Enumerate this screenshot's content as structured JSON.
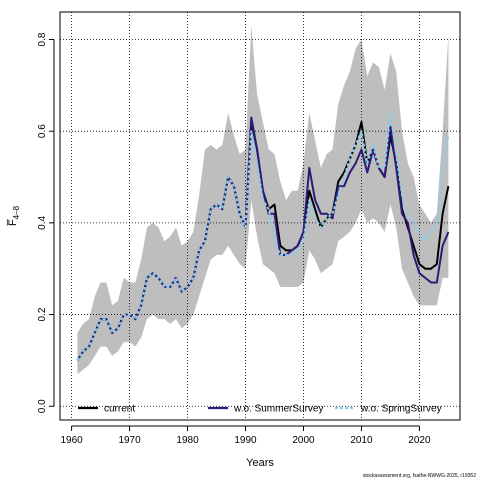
{
  "chart_data": {
    "type": "line",
    "xlabel": "Years",
    "ylabel": "F̅",
    "ylabel_subscript": "4–8",
    "xlim": [
      1958,
      2027
    ],
    "ylim": [
      -0.03,
      0.86
    ],
    "xticks": [
      1960,
      1970,
      1980,
      1990,
      2000,
      2010,
      2020
    ],
    "yticks": [
      0.0,
      0.2,
      0.4,
      0.6,
      0.8
    ],
    "ytick_labels": [
      "0.0",
      "0.2",
      "0.4",
      "0.6",
      "0.8"
    ],
    "grid": true,
    "legend_position": "bottom",
    "source_note": "stockassessment.org, fsathe-NWWG-2025, r19352",
    "x": [
      1961,
      1962,
      1963,
      1964,
      1965,
      1966,
      1967,
      1968,
      1969,
      1970,
      1971,
      1972,
      1973,
      1974,
      1975,
      1976,
      1977,
      1978,
      1979,
      1980,
      1981,
      1982,
      1983,
      1984,
      1985,
      1986,
      1987,
      1988,
      1989,
      1990,
      1991,
      1992,
      1993,
      1994,
      1995,
      1996,
      1997,
      1998,
      1999,
      2000,
      2001,
      2002,
      2003,
      2004,
      2005,
      2006,
      2007,
      2008,
      2009,
      2010,
      2011,
      2012,
      2013,
      2014,
      2015,
      2016,
      2017,
      2018,
      2019,
      2020,
      2021,
      2022,
      2023,
      2024,
      2025
    ],
    "band": {
      "name": "confidence interval",
      "color": "#bebebe",
      "lower": [
        0.07,
        0.08,
        0.09,
        0.11,
        0.13,
        0.13,
        0.11,
        0.12,
        0.14,
        0.14,
        0.13,
        0.15,
        0.19,
        0.2,
        0.19,
        0.19,
        0.18,
        0.19,
        0.17,
        0.18,
        0.2,
        0.24,
        0.28,
        0.32,
        0.33,
        0.33,
        0.35,
        0.33,
        0.31,
        0.3,
        0.45,
        0.37,
        0.31,
        0.3,
        0.29,
        0.26,
        0.26,
        0.26,
        0.26,
        0.27,
        0.34,
        0.32,
        0.29,
        0.3,
        0.31,
        0.36,
        0.37,
        0.38,
        0.4,
        0.43,
        0.4,
        0.41,
        0.4,
        0.38,
        0.44,
        0.39,
        0.3,
        0.27,
        0.24,
        0.22,
        0.22,
        0.22,
        0.22,
        0.28,
        0.28
      ],
      "upper": [
        0.16,
        0.18,
        0.19,
        0.24,
        0.27,
        0.27,
        0.22,
        0.23,
        0.28,
        0.27,
        0.27,
        0.32,
        0.39,
        0.4,
        0.39,
        0.36,
        0.37,
        0.39,
        0.35,
        0.36,
        0.38,
        0.46,
        0.56,
        0.57,
        0.56,
        0.57,
        0.64,
        0.59,
        0.55,
        0.56,
        0.83,
        0.68,
        0.62,
        0.56,
        0.55,
        0.49,
        0.45,
        0.47,
        0.47,
        0.53,
        0.64,
        0.58,
        0.52,
        0.55,
        0.56,
        0.66,
        0.7,
        0.73,
        0.78,
        0.8,
        0.72,
        0.75,
        0.74,
        0.69,
        0.77,
        0.73,
        0.6,
        0.53,
        0.5,
        0.44,
        0.42,
        0.4,
        0.42,
        0.6,
        0.81
      ]
    },
    "series": [
      {
        "name": "current",
        "color": "#000000",
        "dash": "solid",
        "values": [
          0.1,
          0.12,
          0.13,
          0.16,
          0.19,
          0.19,
          0.16,
          0.17,
          0.2,
          0.2,
          0.19,
          0.22,
          0.28,
          0.29,
          0.28,
          0.26,
          0.26,
          0.28,
          0.25,
          0.26,
          0.28,
          0.34,
          0.36,
          0.43,
          0.44,
          0.43,
          0.5,
          0.48,
          0.42,
          0.39,
          0.62,
          0.56,
          0.47,
          0.43,
          0.44,
          0.35,
          0.34,
          0.34,
          0.35,
          0.38,
          0.47,
          0.43,
          0.39,
          0.41,
          0.42,
          0.49,
          0.51,
          0.54,
          0.57,
          0.62,
          0.53,
          0.56,
          0.52,
          0.5,
          0.59,
          0.53,
          0.43,
          0.39,
          0.35,
          0.31,
          0.3,
          0.3,
          0.31,
          0.42,
          0.48
        ]
      },
      {
        "name": "w.o. SummerSurvey",
        "color": "#2e1a78",
        "dash": "solid",
        "values": [
          0.1,
          0.12,
          0.13,
          0.16,
          0.19,
          0.19,
          0.16,
          0.17,
          0.2,
          0.2,
          0.19,
          0.22,
          0.28,
          0.29,
          0.28,
          0.26,
          0.26,
          0.28,
          0.25,
          0.26,
          0.28,
          0.34,
          0.36,
          0.43,
          0.44,
          0.43,
          0.5,
          0.48,
          0.42,
          0.39,
          0.63,
          0.56,
          0.47,
          0.42,
          0.42,
          0.33,
          0.33,
          0.34,
          0.35,
          0.38,
          0.52,
          0.45,
          0.42,
          0.42,
          0.41,
          0.48,
          0.48,
          0.51,
          0.53,
          0.56,
          0.51,
          0.56,
          0.52,
          0.5,
          0.61,
          0.52,
          0.42,
          0.4,
          0.33,
          0.29,
          0.28,
          0.27,
          0.27,
          0.35,
          0.38
        ]
      },
      {
        "name": "w.o. SpringSurvey",
        "color": "#87ceeb",
        "dash": "dashed",
        "values": [
          0.1,
          0.12,
          0.13,
          0.16,
          0.19,
          0.19,
          0.16,
          0.17,
          0.2,
          0.2,
          0.19,
          0.22,
          0.28,
          0.29,
          0.28,
          0.26,
          0.26,
          0.28,
          0.25,
          0.26,
          0.28,
          0.34,
          0.36,
          0.43,
          0.44,
          0.43,
          0.5,
          0.48,
          0.42,
          0.39,
          0.6,
          0.53,
          0.45,
          0.43,
          0.36,
          0.33,
          0.33,
          0.33,
          0.34,
          0.36,
          0.45,
          0.41,
          0.39,
          0.41,
          0.42,
          0.46,
          0.5,
          0.54,
          0.57,
          0.6,
          0.53,
          0.57,
          0.52,
          0.52,
          0.64,
          0.55,
          0.46,
          0.42,
          0.4,
          0.38,
          0.36,
          0.38,
          0.4,
          0.52,
          0.59
        ]
      }
    ]
  }
}
